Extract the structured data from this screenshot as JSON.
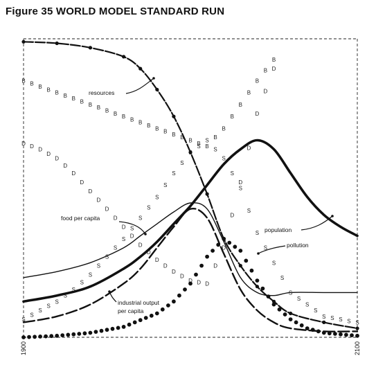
{
  "figure": {
    "title": "Figure 35 WORLD MODEL STANDARD RUN"
  },
  "chart_data": {
    "type": "line",
    "title": "Figure 35 WORLD MODEL STANDARD RUN",
    "xlabel": "",
    "ylabel": "",
    "xlim": [
      1900,
      2100
    ],
    "ylim": [
      0,
      1
    ],
    "x_ticks": [
      1900,
      2100
    ],
    "x_tick_labels": [
      "1900",
      "2100"
    ],
    "grid": false,
    "note": "y values are relative (no y-axis scale printed)",
    "series": [
      {
        "name": "resources",
        "x": [
          1900,
          1920,
          1940,
          1960,
          1970,
          1980,
          1990,
          2000,
          2010,
          2020,
          2030,
          2040,
          2050,
          2060,
          2080,
          2100
        ],
        "y": [
          0.99,
          0.985,
          0.97,
          0.94,
          0.9,
          0.83,
          0.74,
          0.62,
          0.48,
          0.33,
          0.24,
          0.17,
          0.12,
          0.08,
          0.05,
          0.03
        ]
      },
      {
        "name": "population",
        "x": [
          1900,
          1920,
          1940,
          1960,
          1970,
          1980,
          1990,
          2000,
          2010,
          2020,
          2030,
          2040,
          2050,
          2060,
          2070,
          2080,
          2090,
          2100
        ],
        "y": [
          0.12,
          0.14,
          0.17,
          0.23,
          0.27,
          0.32,
          0.38,
          0.44,
          0.51,
          0.58,
          0.63,
          0.66,
          0.63,
          0.55,
          0.47,
          0.41,
          0.37,
          0.34
        ]
      },
      {
        "name": "food per capita",
        "x": [
          1900,
          1920,
          1940,
          1960,
          1970,
          1980,
          1990,
          2000,
          2010,
          2020,
          2030,
          2040,
          2050,
          2060,
          2080,
          2100
        ],
        "y": [
          0.2,
          0.22,
          0.25,
          0.3,
          0.34,
          0.38,
          0.42,
          0.45,
          0.43,
          0.32,
          0.2,
          0.15,
          0.14,
          0.15,
          0.15,
          0.15
        ]
      },
      {
        "name": "industrial output per capita",
        "x": [
          1900,
          1920,
          1940,
          1960,
          1970,
          1980,
          1990,
          2000,
          2010,
          2020,
          2030,
          2040,
          2050,
          2060,
          2080,
          2100
        ],
        "y": [
          0.05,
          0.07,
          0.11,
          0.18,
          0.23,
          0.3,
          0.37,
          0.43,
          0.4,
          0.28,
          0.16,
          0.09,
          0.05,
          0.03,
          0.02,
          0.02
        ]
      },
      {
        "name": "pollution",
        "x": [
          1900,
          1920,
          1940,
          1960,
          1980,
          1990,
          2000,
          2010,
          2020,
          2030,
          2040,
          2050,
          2060,
          2070,
          2080,
          2090,
          2100
        ],
        "y": [
          0.0,
          0.005,
          0.015,
          0.035,
          0.08,
          0.12,
          0.18,
          0.27,
          0.33,
          0.29,
          0.19,
          0.11,
          0.06,
          0.03,
          0.015,
          0.01,
          0.005
        ]
      },
      {
        "name": "B",
        "x": [
          1900,
          1910,
          1920,
          1930,
          1940,
          1950,
          1960,
          1970,
          1980,
          1990,
          2000,
          2010,
          2020,
          2030,
          2040,
          2050
        ],
        "y": [
          0.86,
          0.84,
          0.82,
          0.8,
          0.78,
          0.76,
          0.74,
          0.72,
          0.7,
          0.68,
          0.66,
          0.64,
          0.7,
          0.78,
          0.86,
          0.93
        ]
      },
      {
        "name": "D",
        "x": [
          1900,
          1910,
          1920,
          1930,
          1940,
          1950,
          1960,
          1970,
          1980,
          1990,
          2000,
          2010,
          2020,
          2030,
          2040,
          2050
        ],
        "y": [
          0.65,
          0.63,
          0.6,
          0.55,
          0.49,
          0.43,
          0.37,
          0.31,
          0.26,
          0.22,
          0.19,
          0.18,
          0.3,
          0.52,
          0.75,
          0.9
        ]
      },
      {
        "name": "S",
        "x": [
          1900,
          1910,
          1920,
          1930,
          1940,
          1950,
          1960,
          1970,
          1980,
          1990,
          2000,
          2010,
          2020,
          2030,
          2040,
          2060,
          2080,
          2100
        ],
        "y": [
          0.06,
          0.09,
          0.12,
          0.16,
          0.21,
          0.27,
          0.33,
          0.4,
          0.47,
          0.55,
          0.62,
          0.66,
          0.6,
          0.5,
          0.35,
          0.15,
          0.07,
          0.05
        ]
      }
    ],
    "annotations": [
      {
        "text": "resources"
      },
      {
        "text": "food per capita"
      },
      {
        "text": "population"
      },
      {
        "text": "pollution"
      },
      {
        "text": "industrial output"
      },
      {
        "text": "per capita"
      }
    ]
  }
}
